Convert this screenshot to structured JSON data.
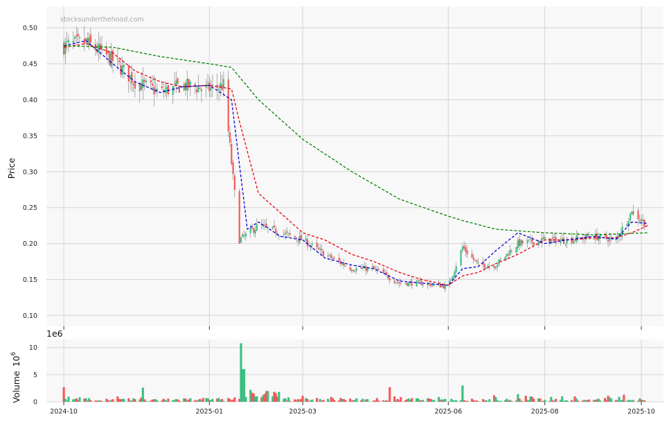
{
  "watermark": "stocksunderthehood.com",
  "colors": {
    "up": "#3dbf84",
    "down": "#f25a5a",
    "ma_red": "#e8000b",
    "ma_blue": "#0000dd",
    "ma_green": "#008000",
    "panel_bg": "#f8f8f8",
    "grid": "#d4d4d4"
  },
  "chart_data": [
    {
      "type": "candlestick",
      "ylabel": "Price",
      "ylim": [
        0.085,
        0.53
      ],
      "y_ticks": [
        "0.10",
        "0.15",
        "0.20",
        "0.25",
        "0.30",
        "0.35",
        "0.40",
        "0.45",
        "0.50"
      ],
      "x_ticks": [
        "2024-10",
        "2025-01",
        "2025-03",
        "2025-06",
        "2025-08",
        "2025-10"
      ],
      "x_range": [
        "2024-09-20",
        "2025-10-15"
      ],
      "grid": true,
      "price_anchors": {
        "dates": [
          "2024-10-01",
          "2024-10-15",
          "2024-11-01",
          "2024-11-15",
          "2024-12-01",
          "2024-12-15",
          "2025-01-01",
          "2025-01-10",
          "2025-01-20",
          "2025-02-01",
          "2025-02-15",
          "2025-03-01",
          "2025-03-15",
          "2025-04-01",
          "2025-04-15",
          "2025-05-01",
          "2025-05-15",
          "2025-06-01",
          "2025-06-10",
          "2025-06-20",
          "2025-07-01",
          "2025-07-15",
          "2025-08-01",
          "2025-08-15",
          "2025-09-01",
          "2025-09-15",
          "2025-09-25",
          "2025-10-05"
        ],
        "close": [
          0.475,
          0.48,
          0.455,
          0.425,
          0.41,
          0.42,
          0.415,
          0.42,
          0.205,
          0.225,
          0.215,
          0.205,
          0.185,
          0.165,
          0.165,
          0.145,
          0.145,
          0.14,
          0.195,
          0.17,
          0.17,
          0.2,
          0.205,
          0.205,
          0.21,
          0.205,
          0.245,
          0.225
        ]
      },
      "moving_averages": [
        {
          "color": "red",
          "dates": [
            "2024-10-01",
            "2024-10-15",
            "2024-11-01",
            "2024-11-15",
            "2024-12-01",
            "2024-12-15",
            "2025-01-01",
            "2025-01-15",
            "2025-01-20",
            "2025-02-01",
            "2025-03-01",
            "2025-03-15",
            "2025-04-01",
            "2025-04-15",
            "2025-05-01",
            "2025-05-15",
            "2025-06-01",
            "2025-06-10",
            "2025-06-20",
            "2025-07-01",
            "2025-07-15",
            "2025-08-01",
            "2025-08-15",
            "2025-09-01",
            "2025-09-15",
            "2025-09-25",
            "2025-10-05"
          ],
          "values": [
            0.473,
            0.478,
            0.465,
            0.44,
            0.425,
            0.418,
            0.42,
            0.415,
            0.37,
            0.27,
            0.215,
            0.205,
            0.185,
            0.175,
            0.16,
            0.15,
            0.142,
            0.155,
            0.16,
            0.172,
            0.185,
            0.205,
            0.205,
            0.208,
            0.208,
            0.215,
            0.225
          ]
        },
        {
          "color": "blue",
          "dates": [
            "2024-10-01",
            "2024-10-15",
            "2024-11-01",
            "2024-11-15",
            "2024-12-01",
            "2024-12-15",
            "2025-01-01",
            "2025-01-15",
            "2025-01-25",
            "2025-02-01",
            "2025-02-15",
            "2025-03-01",
            "2025-03-15",
            "2025-04-01",
            "2025-04-15",
            "2025-05-01",
            "2025-05-15",
            "2025-06-01",
            "2025-06-10",
            "2025-06-20",
            "2025-07-01",
            "2025-07-15",
            "2025-08-01",
            "2025-08-15",
            "2025-09-01",
            "2025-09-15",
            "2025-09-25",
            "2025-10-05"
          ],
          "values": [
            0.475,
            0.482,
            0.45,
            0.425,
            0.41,
            0.418,
            0.42,
            0.4,
            0.22,
            0.23,
            0.21,
            0.205,
            0.18,
            0.17,
            0.165,
            0.148,
            0.145,
            0.142,
            0.165,
            0.168,
            0.19,
            0.215,
            0.2,
            0.205,
            0.21,
            0.206,
            0.23,
            0.228
          ]
        },
        {
          "color": "green",
          "dates": [
            "2024-10-01",
            "2024-11-01",
            "2024-12-01",
            "2025-01-01",
            "2025-01-15",
            "2025-02-01",
            "2025-03-01",
            "2025-04-01",
            "2025-05-01",
            "2025-06-01",
            "2025-06-10",
            "2025-07-01",
            "2025-08-01",
            "2025-09-01",
            "2025-10-05"
          ],
          "values": [
            0.475,
            0.473,
            0.46,
            0.45,
            0.445,
            0.4,
            0.345,
            0.3,
            0.262,
            0.238,
            0.232,
            0.22,
            0.215,
            0.212,
            0.215
          ]
        }
      ]
    },
    {
      "type": "bar",
      "ylabel": "Volume",
      "multiplier": "1e6",
      "ylim": [
        0,
        11.5
      ],
      "y_ticks": [
        "0",
        "5",
        "10"
      ],
      "spikes": {
        "dates": [
          "2024-10-01",
          "2024-11-20",
          "2024-12-28",
          "2025-01-21",
          "2025-01-22",
          "2025-01-23",
          "2025-01-27",
          "2025-03-01",
          "2025-04-25",
          "2025-06-10",
          "2025-06-30",
          "2025-07-15",
          "2025-07-20",
          "2025-08-05",
          "2025-08-20",
          "2025-09-10",
          "2025-09-20"
        ],
        "values": [
          2.7,
          2.6,
          0.7,
          10.8,
          6,
          6,
          2.2,
          1.1,
          2.7,
          3,
          1.2,
          1.4,
          1.1,
          0.9,
          1,
          1.1,
          1.3
        ]
      }
    }
  ]
}
